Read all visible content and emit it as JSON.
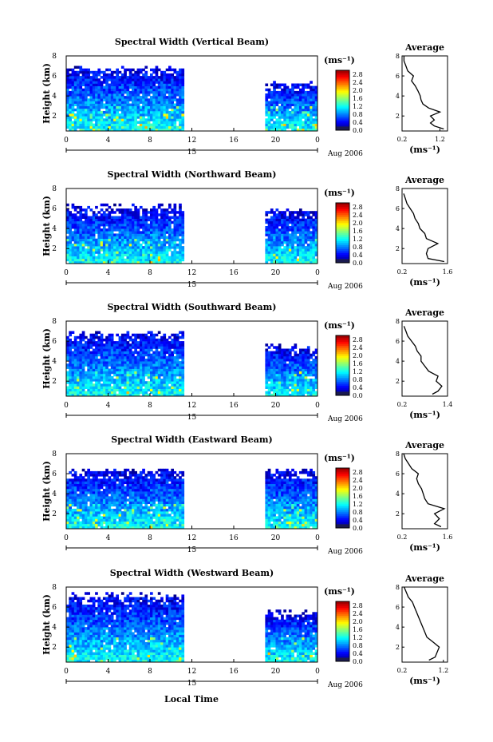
{
  "figure": {
    "xlabel": "Local Time",
    "colorbar_unit": "(ms⁻¹)",
    "average_title": "Average",
    "average_xlabel": "(ms⁻¹)",
    "date_label": "15",
    "month_label": "Aug 2006",
    "ylabel": "Height (km)"
  },
  "chart_data": [
    {
      "type": "heatmap",
      "title": "Spectral Width (Vertical Beam)",
      "xlabel": "",
      "ylabel": "Height (km)",
      "x_ticks": [
        "0",
        "4",
        "8",
        "12",
        "16",
        "20",
        "0"
      ],
      "xlim": [
        0,
        24
      ],
      "ylim": [
        0.5,
        8
      ],
      "y_ticks": [
        "2",
        "4",
        "6",
        "8"
      ],
      "data_gap_hours": [
        11.2,
        18.8
      ],
      "top_height_km_before_gap": 6.5,
      "top_height_km_after_gap": 5.0,
      "colorbar": {
        "ticks": [
          "0.0",
          "0.4",
          "0.8",
          "1.2",
          "1.6",
          "2.0",
          "2.4",
          "2.8"
        ],
        "range": [
          0,
          3.0
        ]
      },
      "average_profile": {
        "xticks": [
          "0.2",
          "1.2"
        ],
        "xlim": [
          0.2,
          1.4
        ],
        "yticks": [
          "2",
          "4",
          "6",
          "8"
        ],
        "ylim": [
          0.5,
          8
        ],
        "height_km": [
          0.7,
          1.0,
          1.3,
          1.6,
          2.0,
          2.4,
          2.8,
          3.2,
          3.6,
          4.0,
          4.5,
          5.0,
          5.5,
          6.0,
          6.5,
          7.0,
          7.5,
          8.0
        ],
        "value": [
          1.3,
          1.05,
          0.95,
          1.05,
          0.95,
          1.2,
          0.9,
          0.75,
          0.7,
          0.68,
          0.62,
          0.55,
          0.45,
          0.5,
          0.35,
          0.3,
          0.25,
          0.25
        ]
      }
    },
    {
      "type": "heatmap",
      "title": "Spectral Width (Northward Beam)",
      "xlabel": "",
      "ylabel": "Height (km)",
      "x_ticks": [
        "0",
        "4",
        "8",
        "12",
        "16",
        "20",
        "0"
      ],
      "xlim": [
        0,
        24
      ],
      "ylim": [
        0.5,
        8
      ],
      "y_ticks": [
        "2",
        "4",
        "6",
        "8"
      ],
      "data_gap_hours": [
        11.2,
        18.8
      ],
      "top_height_km_before_gap": 5.8,
      "top_height_km_after_gap": 5.5,
      "colorbar": {
        "ticks": [
          "0.0",
          "0.4",
          "0.8",
          "1.2",
          "1.6",
          "2.0",
          "2.4",
          "2.8"
        ],
        "range": [
          0,
          3.0
        ]
      },
      "average_profile": {
        "xticks": [
          "0.2",
          "1.6"
        ],
        "xlim": [
          0.2,
          1.6
        ],
        "yticks": [
          "2",
          "4",
          "6",
          "8"
        ],
        "ylim": [
          0.5,
          8
        ],
        "height_km": [
          0.7,
          1.0,
          1.5,
          2.0,
          2.5,
          3.0,
          3.5,
          4.0,
          4.5,
          5.0,
          5.5,
          6.0,
          6.5,
          7.0,
          7.5
        ],
        "value": [
          1.5,
          1.0,
          0.95,
          1.0,
          1.3,
          0.95,
          0.9,
          0.75,
          0.7,
          0.6,
          0.55,
          0.45,
          0.35,
          0.3,
          0.25
        ]
      }
    },
    {
      "type": "heatmap",
      "title": "Spectral Width (Southward Beam)",
      "xlabel": "",
      "ylabel": "Height (km)",
      "x_ticks": [
        "0",
        "4",
        "8",
        "12",
        "16",
        "20",
        "0"
      ],
      "xlim": [
        0,
        24
      ],
      "ylim": [
        0.5,
        8
      ],
      "y_ticks": [
        "2",
        "4",
        "6",
        "8"
      ],
      "data_gap_hours": [
        11.2,
        18.8
      ],
      "top_height_km_before_gap": 6.5,
      "top_height_km_after_gap": 5.2,
      "colorbar": {
        "ticks": [
          "0.0",
          "0.4",
          "0.8",
          "1.2",
          "1.6",
          "2.0",
          "2.4",
          "2.8"
        ],
        "range": [
          0,
          3.0
        ]
      },
      "average_profile": {
        "xticks": [
          "0.2",
          "1.4"
        ],
        "xlim": [
          0.2,
          1.4
        ],
        "yticks": [
          "2",
          "4",
          "6",
          "8"
        ],
        "ylim": [
          0.5,
          8
        ],
        "height_km": [
          0.7,
          1.0,
          1.5,
          2.0,
          2.5,
          3.0,
          3.5,
          4.0,
          4.5,
          5.0,
          5.5,
          6.0,
          6.5,
          7.0,
          7.5
        ],
        "value": [
          1.0,
          1.15,
          1.25,
          1.1,
          1.15,
          0.9,
          0.8,
          0.7,
          0.7,
          0.6,
          0.55,
          0.45,
          0.35,
          0.3,
          0.25
        ]
      }
    },
    {
      "type": "heatmap",
      "title": "Spectral Width (Eastward Beam)",
      "xlabel": "",
      "ylabel": "Height (km)",
      "x_ticks": [
        "0",
        "4",
        "8",
        "12",
        "16",
        "20",
        "0"
      ],
      "xlim": [
        0,
        24
      ],
      "ylim": [
        0.5,
        8
      ],
      "y_ticks": [
        "2",
        "4",
        "6",
        "8"
      ],
      "data_gap_hours": [
        11.2,
        18.8
      ],
      "top_height_km_before_gap": 6.0,
      "top_height_km_after_gap": 6.0,
      "colorbar": {
        "ticks": [
          "0.0",
          "0.4",
          "0.8",
          "1.2",
          "1.6",
          "2.0",
          "2.4",
          "2.8"
        ],
        "range": [
          0,
          3.0
        ]
      },
      "average_profile": {
        "xticks": [
          "0.2",
          "1.6"
        ],
        "xlim": [
          0.2,
          1.6
        ],
        "yticks": [
          "2",
          "4",
          "6",
          "8"
        ],
        "ylim": [
          0.5,
          8
        ],
        "height_km": [
          0.7,
          1.0,
          1.5,
          2.0,
          2.5,
          3.0,
          3.5,
          4.0,
          4.5,
          5.0,
          5.5,
          6.0,
          6.5,
          7.0,
          7.5,
          8.0
        ],
        "value": [
          1.4,
          1.2,
          1.35,
          1.2,
          1.5,
          1.0,
          0.9,
          0.85,
          0.8,
          0.7,
          0.65,
          0.7,
          0.5,
          0.4,
          0.3,
          0.25
        ]
      }
    },
    {
      "type": "heatmap",
      "title": "Spectral Width (Westward Beam)",
      "xlabel": "",
      "ylabel": "Height (km)",
      "x_ticks": [
        "0",
        "4",
        "8",
        "12",
        "16",
        "20",
        "0"
      ],
      "xlim": [
        0,
        24
      ],
      "ylim": [
        0.5,
        8
      ],
      "y_ticks": [
        "2",
        "4",
        "6",
        "8"
      ],
      "data_gap_hours": [
        11.2,
        18.8
      ],
      "top_height_km_before_gap": 6.8,
      "top_height_km_after_gap": 5.2,
      "colorbar": {
        "ticks": [
          "0.0",
          "0.4",
          "0.8",
          "1.2",
          "1.6",
          "2.0",
          "2.4",
          "2.8"
        ],
        "range": [
          0,
          3.0
        ]
      },
      "average_profile": {
        "xticks": [
          "0.2",
          "1.2"
        ],
        "xlim": [
          0.2,
          1.3
        ],
        "yticks": [
          "2",
          "4",
          "6",
          "8"
        ],
        "ylim": [
          0.5,
          8
        ],
        "height_km": [
          0.7,
          1.0,
          1.5,
          2.0,
          2.5,
          3.0,
          3.5,
          4.0,
          4.5,
          5.0,
          5.5,
          6.0,
          6.5,
          7.0,
          7.5,
          8.0
        ],
        "value": [
          0.85,
          1.0,
          1.05,
          1.1,
          0.95,
          0.8,
          0.75,
          0.7,
          0.65,
          0.6,
          0.55,
          0.5,
          0.45,
          0.35,
          0.3,
          0.25
        ]
      }
    }
  ]
}
